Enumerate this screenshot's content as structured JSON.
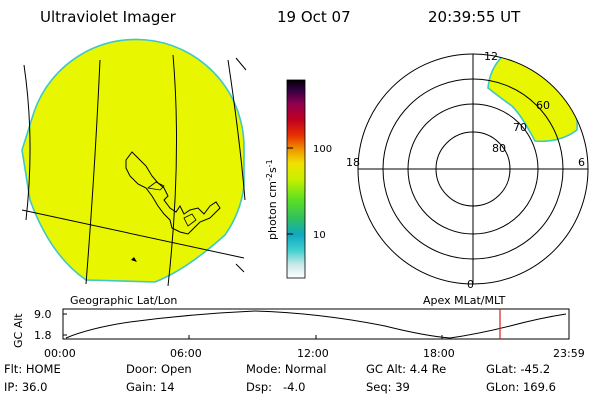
{
  "header": {
    "title": "Ultraviolet Imager",
    "date": "19 Oct 07",
    "time": "20:39:55 UT"
  },
  "colorbar": {
    "unit_prefix": "photon cm",
    "unit_exp1": "-2",
    "unit_mid": "s",
    "unit_exp2": "-1",
    "ticks": [
      "100",
      "10"
    ]
  },
  "left_panel": {
    "label": "Geographic Lat/Lon"
  },
  "right_panel": {
    "label": "Apex MLat/MLT",
    "mlt_labels": [
      "12",
      "18",
      "6",
      "0"
    ],
    "lat_labels": [
      "60",
      "70",
      "80"
    ]
  },
  "timeline": {
    "y_axis_label": "GC Alt",
    "y_ticks": [
      "9.0",
      "1.8"
    ],
    "x_ticks": [
      "00:00",
      "06:00",
      "12:00",
      "18:00",
      "23:59"
    ]
  },
  "info": {
    "row1": [
      "Flt: HOME",
      "Door: Open",
      "Mode: Normal",
      "GC Alt: 4.4 Re",
      "GLat: -45.2"
    ],
    "row2": [
      "IP: 36.0",
      "Gain: 14",
      "Dsp:   -4.0",
      "Seq: 39",
      "GLon: 169.6"
    ]
  },
  "colors": {
    "disk_fill": "#e8f700",
    "disk_edge": "#3ec8c8",
    "timeline_marker": "#d02020"
  }
}
